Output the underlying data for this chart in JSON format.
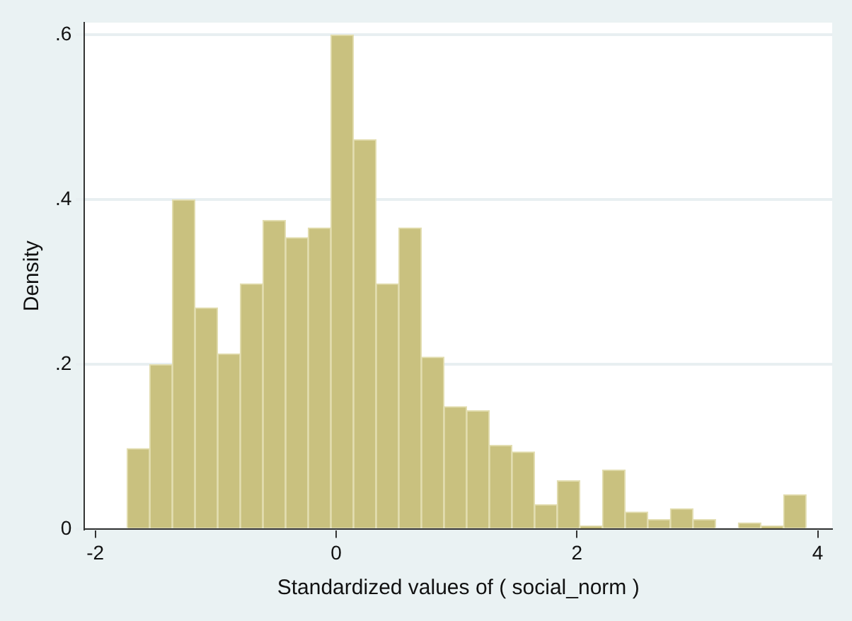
{
  "chart_data": {
    "type": "histogram",
    "xlabel": "Standardized values of ( social_norm )",
    "ylabel": "Density",
    "bins": [
      -1.736,
      -1.548,
      -1.36,
      -1.172,
      -0.984,
      -0.796,
      -0.608,
      -0.42,
      -0.232,
      -0.044,
      0.144,
      0.332,
      0.52,
      0.708,
      0.896,
      1.084,
      1.272,
      1.46,
      1.648,
      1.836,
      2.024,
      2.212,
      2.4,
      2.588,
      2.776,
      2.964,
      3.152,
      3.34,
      3.528,
      3.716,
      3.904
    ],
    "values": [
      0.098,
      0.2,
      0.4,
      0.269,
      0.213,
      0.298,
      0.375,
      0.354,
      0.366,
      0.6,
      0.473,
      0.298,
      0.366,
      0.209,
      0.149,
      0.144,
      0.102,
      0.094,
      0.03,
      0.059,
      0.004,
      0.072,
      0.021,
      0.012,
      0.025,
      0.012,
      0,
      0.008,
      0.004,
      0.042
    ],
    "color": "#c9c17f",
    "xlim": [
      -2.09,
      4.12
    ],
    "xticks": [
      -2,
      0,
      2,
      4
    ],
    "ylim": [
      0,
      0.615
    ],
    "yticks": [
      {
        "value": 0,
        "label": "0"
      },
      {
        "value": 0.2,
        "label": ".2"
      },
      {
        "value": 0.4,
        "label": ".4"
      },
      {
        "value": 0.6,
        "label": ".6"
      }
    ],
    "grid": "y",
    "legend": false
  }
}
